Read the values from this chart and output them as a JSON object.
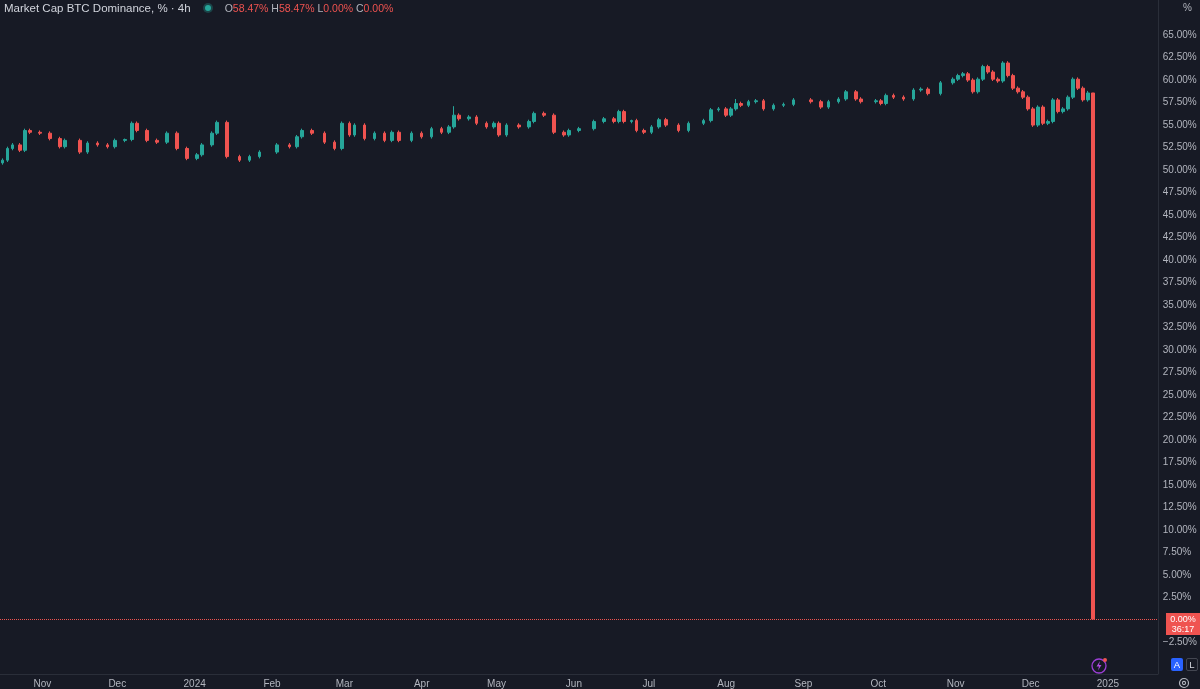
{
  "chart_data": {
    "type": "candlestick",
    "title": "Market Cap BTC Dominance, % · 4h",
    "ylabel": "%",
    "annotations": [
      "O58.47% H58.47% L0.00% C0.00%",
      "36:17",
      "A",
      "L"
    ],
    "x": [
      "2023-10-16",
      "2023-10-18",
      "2023-10-20",
      "2023-10-23",
      "2023-10-25",
      "2023-10-27",
      "2023-10-31",
      "2023-11-04",
      "2023-11-08",
      "2023-11-10",
      "2023-11-16",
      "2023-11-19",
      "2023-11-23",
      "2023-11-27",
      "2023-11-30",
      "2023-12-04",
      "2023-12-07",
      "2023-12-09",
      "2023-12-13",
      "2023-12-17",
      "2023-12-21",
      "2023-12-25",
      "2023-12-29",
      "2024-01-02",
      "2024-01-04",
      "2024-01-08",
      "2024-01-10",
      "2024-01-14",
      "2024-01-19",
      "2024-01-23",
      "2024-01-27",
      "2024-02-03",
      "2024-02-08",
      "2024-02-11",
      "2024-02-13",
      "2024-02-17",
      "2024-02-22",
      "2024-02-26",
      "2024-02-29",
      "2024-03-03",
      "2024-03-05",
      "2024-03-09",
      "2024-03-13",
      "2024-03-17",
      "2024-03-20",
      "2024-03-23",
      "2024-03-28",
      "2024-04-01",
      "2024-04-05",
      "2024-04-09",
      "2024-04-12",
      "2024-04-14",
      "2024-04-16",
      "2024-04-20",
      "2024-04-23",
      "2024-04-27",
      "2024-04-30",
      "2024-05-02",
      "2024-05-05",
      "2024-05-10",
      "2024-05-14",
      "2024-05-16",
      "2024-05-20",
      "2024-05-24",
      "2024-05-28",
      "2024-05-30",
      "2024-06-03",
      "2024-06-09",
      "2024-06-13",
      "2024-06-17",
      "2024-06-19",
      "2024-06-21",
      "2024-06-24",
      "2024-06-26",
      "2024-06-29",
      "2024-07-02",
      "2024-07-05",
      "2024-07-08",
      "2024-07-13",
      "2024-07-17",
      "2024-07-23",
      "2024-07-26",
      "2024-07-29",
      "2024-08-01",
      "2024-08-03",
      "2024-08-05",
      "2024-08-07",
      "2024-08-10",
      "2024-08-13",
      "2024-08-16",
      "2024-08-20",
      "2024-08-24",
      "2024-08-28",
      "2024-09-04",
      "2024-09-08",
      "2024-09-11",
      "2024-09-15",
      "2024-09-18",
      "2024-09-22",
      "2024-09-24",
      "2024-09-30",
      "2024-10-02",
      "2024-10-04",
      "2024-10-07",
      "2024-10-11",
      "2024-10-15",
      "2024-10-18",
      "2024-10-21",
      "2024-10-26",
      "2024-10-31",
      "2024-11-02",
      "2024-11-04",
      "2024-11-06",
      "2024-11-08",
      "2024-11-10",
      "2024-11-12",
      "2024-11-14",
      "2024-11-16",
      "2024-11-18",
      "2024-11-20",
      "2024-11-22",
      "2024-11-24",
      "2024-11-26",
      "2024-11-28",
      "2024-11-30",
      "2024-12-02",
      "2024-12-04",
      "2024-12-06",
      "2024-12-08",
      "2024-12-10",
      "2024-12-12",
      "2024-12-14",
      "2024-12-16",
      "2024-12-18",
      "2024-12-20",
      "2024-12-22",
      "2024-12-24",
      "2024-12-26"
    ],
    "ohlc": [
      [
        50.7,
        51.2,
        50.5,
        51.0
      ],
      [
        51.0,
        52.5,
        50.8,
        52.3
      ],
      [
        52.3,
        52.9,
        52.1,
        52.7
      ],
      [
        52.7,
        52.9,
        51.9,
        52.1
      ],
      [
        52.1,
        54.5,
        51.9,
        54.3
      ],
      [
        54.3,
        54.5,
        53.9,
        54.1
      ],
      [
        54.1,
        54.3,
        53.8,
        54.0
      ],
      [
        54.0,
        54.2,
        53.2,
        53.4
      ],
      [
        53.4,
        53.6,
        52.3,
        52.5
      ],
      [
        52.5,
        53.4,
        52.3,
        53.2
      ],
      [
        53.2,
        53.4,
        51.7,
        51.9
      ],
      [
        51.9,
        53.1,
        51.7,
        52.9
      ],
      [
        52.9,
        53.1,
        52.5,
        52.7
      ],
      [
        52.7,
        52.9,
        52.3,
        52.5
      ],
      [
        52.5,
        53.4,
        52.3,
        53.2
      ],
      [
        53.2,
        53.4,
        53.0,
        53.3
      ],
      [
        53.3,
        55.3,
        53.1,
        55.1
      ],
      [
        55.1,
        55.3,
        54.1,
        54.3
      ],
      [
        54.3,
        54.5,
        53.0,
        53.2
      ],
      [
        53.2,
        53.4,
        52.8,
        53.0
      ],
      [
        53.0,
        54.2,
        52.8,
        54.0
      ],
      [
        54.0,
        54.2,
        52.1,
        52.3
      ],
      [
        52.3,
        52.5,
        51.0,
        51.2
      ],
      [
        51.2,
        51.8,
        51.0,
        51.6
      ],
      [
        51.6,
        52.9,
        51.4,
        52.7
      ],
      [
        52.7,
        54.2,
        52.5,
        54.0
      ],
      [
        54.0,
        55.4,
        53.8,
        55.2
      ],
      [
        55.2,
        55.4,
        51.2,
        51.4
      ],
      [
        51.4,
        51.6,
        50.8,
        51.0
      ],
      [
        51.0,
        51.6,
        50.8,
        51.4
      ],
      [
        51.4,
        52.1,
        51.2,
        51.9
      ],
      [
        51.9,
        52.9,
        51.7,
        52.7
      ],
      [
        52.7,
        52.9,
        52.3,
        52.5
      ],
      [
        52.5,
        53.8,
        52.3,
        53.6
      ],
      [
        53.6,
        54.5,
        53.4,
        54.3
      ],
      [
        54.3,
        54.5,
        53.8,
        54.0
      ],
      [
        54.0,
        54.2,
        52.8,
        53.0
      ],
      [
        53.0,
        53.2,
        52.1,
        52.3
      ],
      [
        52.3,
        55.3,
        52.1,
        55.1
      ],
      [
        55.1,
        55.3,
        53.6,
        53.8
      ],
      [
        53.8,
        55.1,
        53.6,
        54.9
      ],
      [
        54.9,
        55.1,
        53.2,
        53.4
      ],
      [
        53.4,
        54.2,
        53.2,
        54.0
      ],
      [
        54.0,
        54.2,
        53.0,
        53.2
      ],
      [
        53.2,
        54.3,
        53.0,
        54.1
      ],
      [
        54.1,
        54.3,
        53.0,
        53.2
      ],
      [
        53.2,
        54.2,
        53.0,
        54.0
      ],
      [
        54.0,
        54.2,
        53.4,
        53.6
      ],
      [
        53.6,
        54.7,
        53.4,
        54.5
      ],
      [
        54.5,
        54.7,
        53.9,
        54.1
      ],
      [
        54.1,
        54.9,
        53.9,
        54.7
      ],
      [
        54.7,
        57.0,
        54.5,
        56.0
      ],
      [
        56.0,
        56.2,
        55.4,
        55.6
      ],
      [
        55.6,
        56.0,
        55.4,
        55.8
      ],
      [
        55.8,
        56.0,
        54.9,
        55.1
      ],
      [
        55.1,
        55.3,
        54.5,
        54.7
      ],
      [
        54.7,
        55.3,
        54.5,
        55.1
      ],
      [
        55.1,
        55.3,
        53.6,
        53.8
      ],
      [
        53.8,
        55.1,
        53.6,
        54.9
      ],
      [
        54.9,
        55.1,
        54.5,
        54.7
      ],
      [
        54.7,
        55.5,
        54.5,
        55.3
      ],
      [
        55.3,
        56.4,
        55.1,
        56.2
      ],
      [
        56.2,
        56.4,
        55.8,
        56.0
      ],
      [
        56.0,
        56.2,
        53.9,
        54.1
      ],
      [
        54.1,
        54.3,
        53.6,
        53.8
      ],
      [
        53.8,
        54.5,
        53.6,
        54.3
      ],
      [
        54.3,
        54.7,
        54.1,
        54.5
      ],
      [
        54.5,
        55.5,
        54.3,
        55.3
      ],
      [
        55.3,
        55.8,
        55.1,
        55.6
      ],
      [
        55.6,
        55.8,
        55.1,
        55.3
      ],
      [
        55.3,
        56.6,
        55.1,
        56.4
      ],
      [
        56.4,
        56.6,
        55.1,
        55.3
      ],
      [
        55.3,
        55.5,
        55.1,
        55.4
      ],
      [
        55.4,
        55.6,
        54.1,
        54.3
      ],
      [
        54.3,
        54.5,
        53.9,
        54.1
      ],
      [
        54.1,
        54.9,
        53.9,
        54.7
      ],
      [
        54.7,
        55.7,
        54.5,
        55.5
      ],
      [
        55.5,
        55.7,
        54.7,
        54.9
      ],
      [
        54.9,
        55.1,
        54.1,
        54.3
      ],
      [
        54.3,
        55.3,
        54.1,
        55.1
      ],
      [
        55.1,
        55.6,
        54.9,
        55.4
      ],
      [
        55.4,
        56.8,
        55.2,
        56.6
      ],
      [
        56.6,
        56.9,
        56.4,
        56.7
      ],
      [
        56.7,
        56.9,
        55.8,
        56.0
      ],
      [
        56.0,
        56.9,
        55.8,
        56.7
      ],
      [
        56.7,
        57.8,
        56.5,
        57.3
      ],
      [
        57.3,
        57.5,
        56.9,
        57.1
      ],
      [
        57.1,
        57.7,
        56.9,
        57.5
      ],
      [
        57.5,
        57.8,
        57.3,
        57.6
      ],
      [
        57.6,
        57.8,
        56.5,
        56.7
      ],
      [
        56.7,
        57.3,
        56.5,
        57.1
      ],
      [
        57.1,
        57.4,
        56.9,
        57.2
      ],
      [
        57.2,
        57.9,
        57.0,
        57.7
      ],
      [
        57.7,
        57.9,
        57.3,
        57.5
      ],
      [
        57.5,
        57.7,
        56.7,
        56.9
      ],
      [
        56.9,
        57.7,
        56.7,
        57.5
      ],
      [
        57.5,
        58.0,
        57.3,
        57.8
      ],
      [
        57.8,
        58.8,
        57.6,
        58.6
      ],
      [
        58.6,
        58.8,
        57.6,
        57.8
      ],
      [
        57.8,
        58.0,
        57.3,
        57.5
      ],
      [
        57.5,
        57.8,
        57.3,
        57.6
      ],
      [
        57.6,
        57.8,
        57.1,
        57.3
      ],
      [
        57.3,
        58.4,
        57.1,
        58.2
      ],
      [
        58.2,
        58.4,
        57.8,
        58.0
      ],
      [
        58.0,
        58.2,
        57.6,
        57.8
      ],
      [
        57.8,
        59.0,
        57.6,
        58.8
      ],
      [
        58.8,
        59.1,
        58.6,
        58.9
      ],
      [
        58.9,
        59.1,
        58.2,
        58.4
      ],
      [
        58.4,
        59.8,
        58.2,
        59.6
      ],
      [
        59.6,
        60.2,
        59.4,
        60.0
      ],
      [
        60.0,
        60.6,
        59.8,
        60.4
      ],
      [
        60.4,
        60.8,
        60.2,
        60.6
      ],
      [
        60.6,
        60.8,
        59.7,
        59.9
      ],
      [
        59.9,
        60.1,
        58.4,
        58.6
      ],
      [
        58.6,
        60.2,
        58.4,
        60.0
      ],
      [
        60.0,
        61.6,
        59.8,
        61.4
      ],
      [
        61.4,
        61.6,
        60.6,
        60.8
      ],
      [
        60.8,
        61.0,
        59.8,
        60.0
      ],
      [
        60.0,
        60.2,
        59.6,
        59.8
      ],
      [
        59.8,
        62.0,
        59.6,
        61.8
      ],
      [
        61.8,
        62.0,
        60.2,
        60.4
      ],
      [
        60.4,
        60.6,
        58.8,
        59.0
      ],
      [
        59.0,
        59.2,
        58.4,
        58.6
      ],
      [
        58.6,
        58.8,
        57.8,
        58.0
      ],
      [
        58.0,
        58.2,
        56.5,
        56.7
      ],
      [
        56.7,
        56.9,
        54.7,
        54.9
      ],
      [
        54.9,
        57.1,
        54.7,
        56.9
      ],
      [
        56.9,
        57.1,
        54.9,
        55.1
      ],
      [
        55.1,
        55.5,
        54.9,
        55.3
      ],
      [
        55.3,
        57.9,
        55.1,
        57.7
      ],
      [
        57.7,
        57.9,
        56.2,
        56.4
      ],
      [
        56.4,
        56.9,
        56.2,
        56.7
      ],
      [
        56.7,
        58.2,
        56.5,
        58.0
      ],
      [
        58.0,
        60.2,
        57.8,
        60.0
      ],
      [
        60.0,
        60.2,
        58.8,
        59.0
      ],
      [
        59.0,
        59.2,
        57.5,
        57.7
      ],
      [
        57.7,
        58.7,
        57.5,
        58.47
      ],
      [
        58.47,
        58.47,
        0,
        0
      ]
    ],
    "colors": [
      "#26a69a",
      "#26a69a",
      "#26a69a",
      "#ef5350",
      "#26a69a",
      "#ef5350",
      "#ef5350",
      "#ef5350",
      "#ef5350",
      "#26a69a",
      "#ef5350",
      "#26a69a",
      "#ef5350",
      "#ef5350",
      "#26a69a",
      "#26a69a",
      "#26a69a",
      "#ef5350",
      "#ef5350",
      "#ef5350",
      "#26a69a",
      "#ef5350",
      "#ef5350",
      "#26a69a",
      "#26a69a",
      "#26a69a",
      "#26a69a",
      "#ef5350",
      "#ef5350",
      "#26a69a",
      "#26a69a",
      "#26a69a",
      "#ef5350",
      "#26a69a",
      "#26a69a",
      "#ef5350",
      "#ef5350",
      "#ef5350",
      "#26a69a",
      "#ef5350",
      "#26a69a",
      "#ef5350",
      "#26a69a",
      "#ef5350",
      "#26a69a",
      "#ef5350",
      "#26a69a",
      "#ef5350",
      "#26a69a",
      "#ef5350",
      "#26a69a",
      "#26a69a",
      "#ef5350",
      "#26a69a",
      "#ef5350",
      "#ef5350",
      "#26a69a",
      "#ef5350",
      "#26a69a",
      "#ef5350",
      "#26a69a",
      "#26a69a",
      "#ef5350",
      "#ef5350",
      "#ef5350",
      "#26a69a",
      "#26a69a",
      "#26a69a",
      "#26a69a",
      "#ef5350",
      "#26a69a",
      "#ef5350",
      "#26a69a",
      "#ef5350",
      "#ef5350",
      "#26a69a",
      "#26a69a",
      "#ef5350",
      "#ef5350",
      "#26a69a",
      "#26a69a",
      "#26a69a",
      "#26a69a",
      "#ef5350",
      "#26a69a",
      "#26a69a",
      "#ef5350",
      "#26a69a",
      "#26a69a",
      "#ef5350",
      "#26a69a",
      "#26a69a",
      "#26a69a",
      "#ef5350",
      "#ef5350",
      "#26a69a",
      "#26a69a",
      "#26a69a",
      "#ef5350",
      "#ef5350",
      "#26a69a",
      "#ef5350",
      "#26a69a",
      "#ef5350",
      "#ef5350",
      "#26a69a",
      "#26a69a",
      "#ef5350",
      "#26a69a",
      "#26a69a",
      "#26a69a",
      "#26a69a",
      "#ef5350",
      "#ef5350",
      "#26a69a",
      "#26a69a",
      "#ef5350",
      "#ef5350",
      "#ef5350",
      "#26a69a",
      "#ef5350",
      "#ef5350",
      "#ef5350",
      "#ef5350",
      "#ef5350",
      "#ef5350",
      "#26a69a",
      "#ef5350",
      "#26a69a",
      "#26a69a",
      "#ef5350",
      "#26a69a",
      "#26a69a",
      "#26a69a",
      "#ef5350",
      "#ef5350",
      "#26a69a",
      "#ef5350"
    ],
    "xlim": [
      "2023-10-15",
      "2025-01-21"
    ],
    "xticks": [
      {
        "value": "2023-11-01",
        "label": "Nov"
      },
      {
        "value": "2023-12-01",
        "label": "Dec"
      },
      {
        "value": "2024-01-01",
        "label": "2024"
      },
      {
        "value": "2024-02-01",
        "label": "Feb"
      },
      {
        "value": "2024-03-01",
        "label": "Mar"
      },
      {
        "value": "2024-04-01",
        "label": "Apr"
      },
      {
        "value": "2024-05-01",
        "label": "May"
      },
      {
        "value": "2024-06-01",
        "label": "Jun"
      },
      {
        "value": "2024-07-01",
        "label": "Jul"
      },
      {
        "value": "2024-08-01",
        "label": "Aug"
      },
      {
        "value": "2024-09-01",
        "label": "Sep"
      },
      {
        "value": "2024-10-01",
        "label": "Oct"
      },
      {
        "value": "2024-11-01",
        "label": "Nov"
      },
      {
        "value": "2024-12-01",
        "label": "Dec"
      },
      {
        "value": "2025-01-01",
        "label": "2025"
      }
    ],
    "ylim": [
      -6.1,
      68.8
    ],
    "yticks": [
      {
        "value": -2.5,
        "label": "−2.50%"
      },
      {
        "value": 2.5,
        "label": "2.50%"
      },
      {
        "value": 5,
        "label": "5.00%"
      },
      {
        "value": 7.5,
        "label": "7.50%"
      },
      {
        "value": 10,
        "label": "10.00%"
      },
      {
        "value": 12.5,
        "label": "12.50%"
      },
      {
        "value": 15,
        "label": "15.00%"
      },
      {
        "value": 17.5,
        "label": "17.50%"
      },
      {
        "value": 20,
        "label": "20.00%"
      },
      {
        "value": 22.5,
        "label": "22.50%"
      },
      {
        "value": 25,
        "label": "25.00%"
      },
      {
        "value": 27.5,
        "label": "27.50%"
      },
      {
        "value": 30,
        "label": "30.00%"
      },
      {
        "value": 32.5,
        "label": "32.50%"
      },
      {
        "value": 35,
        "label": "35.00%"
      },
      {
        "value": 37.5,
        "label": "37.50%"
      },
      {
        "value": 40,
        "label": "40.00%"
      },
      {
        "value": 42.5,
        "label": "42.50%"
      },
      {
        "value": 45,
        "label": "45.00%"
      },
      {
        "value": 47.5,
        "label": "47.50%"
      },
      {
        "value": 50,
        "label": "50.00%"
      },
      {
        "value": 52.5,
        "label": "52.50%"
      },
      {
        "value": 55,
        "label": "55.00%"
      },
      {
        "value": 57.5,
        "label": "57.50%"
      },
      {
        "value": 60,
        "label": "60.00%"
      },
      {
        "value": 62.5,
        "label": "62.50%"
      },
      {
        "value": 65,
        "label": "65.00%"
      }
    ],
    "ref_lines": [
      {
        "axis": "y",
        "value": 0,
        "label": "0.00%",
        "color": "#ef5350",
        "line_style": "dotted"
      }
    ]
  }
}
